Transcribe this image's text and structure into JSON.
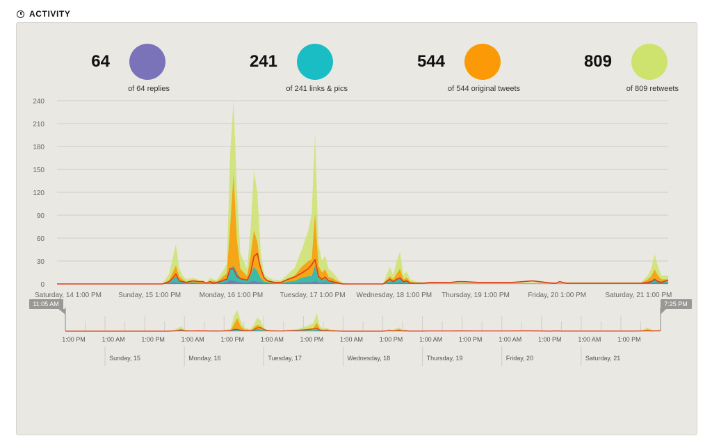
{
  "section": {
    "title": "ACTIVITY",
    "icon": "clock-icon"
  },
  "stats": [
    {
      "value": "64",
      "label": "of 64 replies",
      "color": "#7b73b9"
    },
    {
      "value": "241",
      "label": "of 241 links & pics",
      "color": "#1bbdc4"
    },
    {
      "value": "544",
      "label": "of 544 original tweets",
      "color": "#fb9a06"
    },
    {
      "value": "809",
      "label": "of 809 retweets",
      "color": "#cde36e"
    }
  ],
  "chart_data": {
    "type": "area",
    "ylim": [
      0,
      240
    ],
    "yticks": [
      0,
      30,
      60,
      90,
      120,
      150,
      180,
      210,
      240
    ],
    "xlim": [
      0,
      180
    ],
    "xtick_labels": [
      {
        "t": 0,
        "label": "Saturday, 14 1:00 PM"
      },
      {
        "t": 24,
        "label": "Sunday, 15 1:00 PM"
      },
      {
        "t": 48,
        "label": "Monday, 16 1:00 PM"
      },
      {
        "t": 72,
        "label": "Tuesday, 17 1:00 PM"
      },
      {
        "t": 96,
        "label": "Wednesday, 18 1:00 PM"
      },
      {
        "t": 120,
        "label": "Thursday, 19 1:00 PM"
      },
      {
        "t": 144,
        "label": "Friday, 20 1:00 PM"
      },
      {
        "t": 168,
        "label": "Saturday, 21 1:00 PM"
      }
    ],
    "grid": true,
    "x": [
      0,
      30,
      31,
      33,
      34,
      35,
      36,
      37,
      38,
      40,
      42,
      43,
      44,
      45,
      46,
      47,
      48,
      49,
      50,
      51,
      52,
      53,
      54,
      56,
      57,
      58,
      59,
      60,
      61,
      62,
      64,
      66,
      68,
      70,
      72,
      74,
      75,
      76,
      77,
      78,
      79,
      80,
      81,
      82,
      83,
      84,
      86,
      88,
      96,
      98,
      99,
      100,
      101,
      102,
      103,
      104,
      106,
      108,
      110,
      112,
      114,
      116,
      118,
      120,
      124,
      128,
      134,
      140,
      146,
      147,
      148,
      150,
      156,
      162,
      168,
      172,
      174,
      175,
      176,
      177,
      178,
      180
    ],
    "series": [
      {
        "name": "retweets",
        "color": "#cde36e",
        "values": [
          0,
          0,
          0,
          8,
          18,
          28,
          10,
          5,
          3,
          3,
          2,
          2,
          1,
          4,
          2,
          2,
          5,
          8,
          12,
          95,
          214,
          65,
          20,
          10,
          35,
          78,
          65,
          22,
          6,
          4,
          2,
          2,
          6,
          10,
          22,
          40,
          60,
          105,
          28,
          15,
          18,
          10,
          8,
          6,
          2,
          1,
          0,
          0,
          0,
          12,
          6,
          16,
          22,
          6,
          8,
          3,
          2,
          1,
          2,
          2,
          1,
          1,
          1,
          1,
          1,
          1,
          1,
          1,
          1,
          1,
          1,
          1,
          1,
          1,
          1,
          1,
          5,
          10,
          20,
          12,
          5,
          5
        ]
      },
      {
        "name": "original tweets",
        "color": "#fb9a06",
        "values": [
          0,
          0,
          0,
          3,
          8,
          14,
          6,
          3,
          2,
          3,
          2,
          2,
          1,
          3,
          2,
          2,
          3,
          6,
          8,
          55,
          120,
          42,
          12,
          6,
          25,
          48,
          38,
          12,
          4,
          3,
          2,
          2,
          4,
          7,
          14,
          20,
          22,
          68,
          16,
          10,
          12,
          6,
          5,
          4,
          2,
          1,
          0,
          0,
          0,
          6,
          3,
          8,
          12,
          3,
          5,
          2,
          1,
          1,
          1,
          1,
          1,
          1,
          1,
          1,
          1,
          1,
          1,
          1,
          1,
          1,
          1,
          1,
          1,
          1,
          1,
          1,
          3,
          6,
          12,
          7,
          3,
          3
        ]
      },
      {
        "name": "links & pics",
        "color": "#1bbdc4",
        "values": [
          0,
          0,
          0,
          1,
          4,
          8,
          3,
          2,
          1,
          1,
          1,
          1,
          0,
          1,
          1,
          1,
          2,
          3,
          4,
          15,
          20,
          12,
          6,
          3,
          8,
          18,
          14,
          5,
          2,
          1,
          1,
          1,
          2,
          3,
          6,
          8,
          8,
          20,
          6,
          4,
          5,
          2,
          2,
          1,
          1,
          0,
          0,
          0,
          0,
          3,
          2,
          4,
          6,
          2,
          2,
          1,
          0,
          0,
          0,
          0,
          0,
          0,
          0,
          0,
          0,
          0,
          0,
          0,
          0,
          0,
          0,
          0,
          0,
          0,
          0,
          0,
          2,
          3,
          5,
          3,
          2,
          2
        ]
      },
      {
        "name": "replies",
        "color": "#7b73b9",
        "values": [
          0,
          0,
          0,
          1,
          2,
          2,
          1,
          1,
          0,
          1,
          0,
          0,
          0,
          0,
          1,
          0,
          1,
          1,
          2,
          5,
          4,
          3,
          2,
          1,
          3,
          4,
          3,
          2,
          1,
          1,
          0,
          0,
          1,
          1,
          2,
          2,
          2,
          4,
          2,
          1,
          2,
          1,
          1,
          0,
          0,
          0,
          0,
          0,
          0,
          1,
          1,
          1,
          2,
          1,
          1,
          0,
          0,
          0,
          0,
          0,
          0,
          0,
          0,
          0,
          0,
          0,
          0,
          0,
          0,
          0,
          0,
          0,
          0,
          0,
          0,
          0,
          1,
          1,
          2,
          1,
          1,
          1
        ]
      }
    ],
    "line": {
      "name": "total",
      "color": "#e03a1c",
      "values": [
        0,
        0,
        0,
        3,
        7,
        13,
        4,
        3,
        2,
        4,
        3,
        3,
        1,
        3,
        1,
        2,
        3,
        5,
        6,
        20,
        20,
        10,
        7,
        5,
        14,
        36,
        40,
        20,
        8,
        4,
        2,
        2,
        6,
        9,
        14,
        20,
        25,
        32,
        10,
        6,
        9,
        4,
        3,
        2,
        1,
        0,
        0,
        0,
        0,
        6,
        3,
        6,
        8,
        3,
        4,
        1,
        1,
        1,
        2,
        2,
        2,
        2,
        3,
        3,
        2,
        2,
        2,
        4,
        1,
        1,
        3,
        1,
        1,
        1,
        1,
        1,
        2,
        3,
        6,
        3,
        2,
        5
      ]
    },
    "navigator": {
      "left_handle_label": "11:05 AM",
      "right_handle_label": "7:25 PM",
      "time_labels": [
        {
          "t": 0,
          "label": "1:00 PM"
        },
        {
          "t": 12,
          "label": "1:00 AM"
        },
        {
          "t": 24,
          "label": "1:00 PM"
        },
        {
          "t": 36,
          "label": "1:00 AM"
        },
        {
          "t": 48,
          "label": "1:00 PM"
        },
        {
          "t": 60,
          "label": "1:00 AM"
        },
        {
          "t": 72,
          "label": "1:00 PM"
        },
        {
          "t": 84,
          "label": "1:00 AM"
        },
        {
          "t": 96,
          "label": "1:00 PM"
        },
        {
          "t": 108,
          "label": "1:00 AM"
        },
        {
          "t": 120,
          "label": "1:00 PM"
        },
        {
          "t": 132,
          "label": "1:00 AM"
        },
        {
          "t": 144,
          "label": "1:00 PM"
        },
        {
          "t": 156,
          "label": "1:00 AM"
        },
        {
          "t": 168,
          "label": "1:00 PM"
        }
      ],
      "day_labels": [
        {
          "t": 12,
          "label": "Sunday, 15"
        },
        {
          "t": 36,
          "label": "Monday, 16"
        },
        {
          "t": 60,
          "label": "Tuesday, 17"
        },
        {
          "t": 84,
          "label": "Wednesday, 18"
        },
        {
          "t": 108,
          "label": "Thursday, 19"
        },
        {
          "t": 132,
          "label": "Friday, 20"
        },
        {
          "t": 156,
          "label": "Saturday, 21"
        }
      ]
    }
  }
}
